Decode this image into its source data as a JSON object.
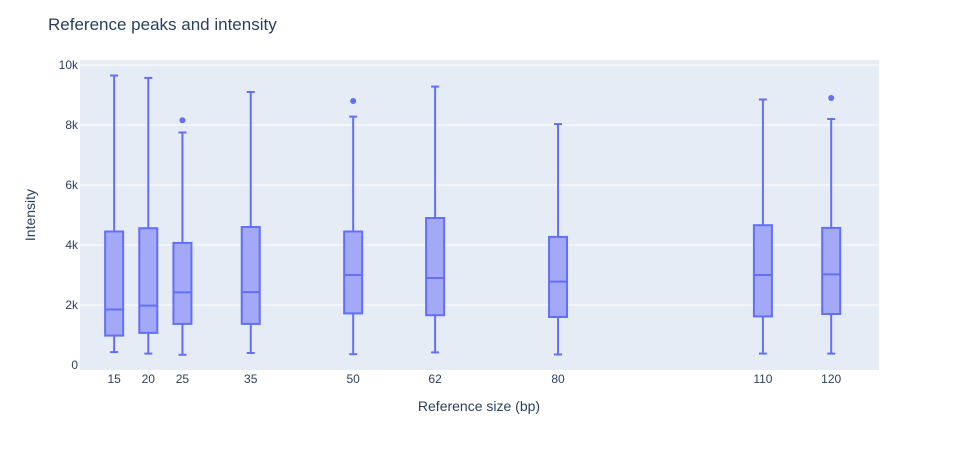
{
  "chart_data": {
    "type": "box",
    "title": "Reference peaks and intensity",
    "xlabel": "Reference size (bp)",
    "ylabel": "Intensity",
    "ylim": [
      0,
      10000
    ],
    "yticks": [
      {
        "value": 0,
        "label": "0"
      },
      {
        "value": 2000,
        "label": "2k"
      },
      {
        "value": 4000,
        "label": "4k"
      },
      {
        "value": 6000,
        "label": "6k"
      },
      {
        "value": 8000,
        "label": "8k"
      },
      {
        "value": 10000,
        "label": "10k"
      }
    ],
    "xlim": [
      10,
      127
    ],
    "grid": true,
    "colors": {
      "fill": "#a3a9f6",
      "line": "#636efa",
      "plot_bg": "#e5ecf6",
      "text": "#2a3f5f",
      "grid": "#ffffff"
    },
    "boxes": [
      {
        "x": 15,
        "label": "15",
        "min": 430,
        "q1": 980,
        "median": 1850,
        "q3": 4450,
        "max": 9650,
        "outliers": []
      },
      {
        "x": 20,
        "label": "20",
        "min": 380,
        "q1": 1070,
        "median": 1980,
        "q3": 4560,
        "max": 9570,
        "outliers": []
      },
      {
        "x": 25,
        "label": "25",
        "min": 340,
        "q1": 1370,
        "median": 2420,
        "q3": 4070,
        "max": 7750,
        "outliers": [
          8160
        ]
      },
      {
        "x": 35,
        "label": "35",
        "min": 400,
        "q1": 1370,
        "median": 2430,
        "q3": 4600,
        "max": 9100,
        "outliers": []
      },
      {
        "x": 50,
        "label": "50",
        "min": 360,
        "q1": 1720,
        "median": 3000,
        "q3": 4450,
        "max": 8280,
        "outliers": [
          8800
        ]
      },
      {
        "x": 62,
        "label": "62",
        "min": 420,
        "q1": 1660,
        "median": 2900,
        "q3": 4900,
        "max": 9280,
        "outliers": []
      },
      {
        "x": 80,
        "label": "80",
        "min": 350,
        "q1": 1600,
        "median": 2780,
        "q3": 4270,
        "max": 8030,
        "outliers": []
      },
      {
        "x": 110,
        "label": "110",
        "min": 380,
        "q1": 1620,
        "median": 3000,
        "q3": 4660,
        "max": 8850,
        "outliers": []
      },
      {
        "x": 120,
        "label": "120",
        "min": 380,
        "q1": 1700,
        "median": 3020,
        "q3": 4570,
        "max": 8200,
        "outliers": [
          8900
        ]
      }
    ]
  }
}
